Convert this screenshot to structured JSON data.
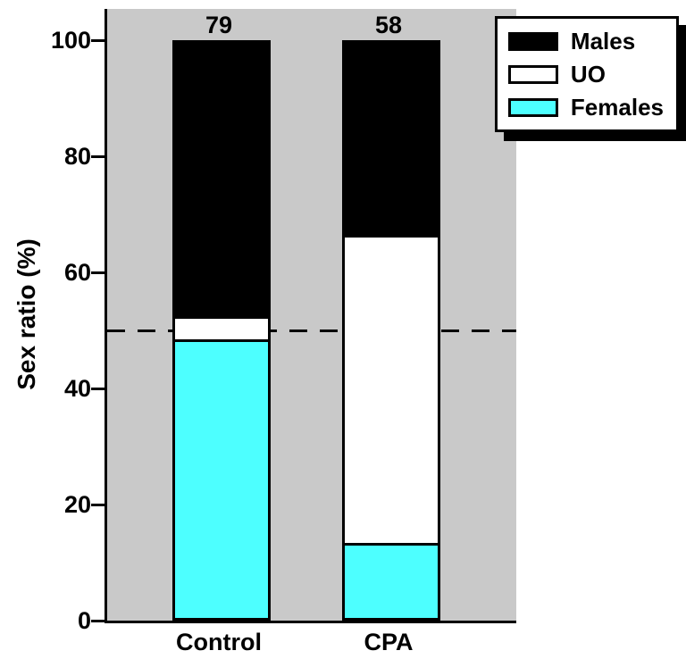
{
  "chart_data": {
    "type": "bar",
    "stacked": true,
    "title": "",
    "xlabel": "",
    "ylabel": "Sex ratio (%)",
    "ylim": [
      0,
      100
    ],
    "yticks": [
      0,
      20,
      40,
      60,
      80,
      100
    ],
    "grid": false,
    "categories": [
      "Control",
      "CPA"
    ],
    "bar_total_labels": [
      "79",
      "58"
    ],
    "series": [
      {
        "name": "Females",
        "color": "#4DFFFF",
        "values": [
          48,
          13
        ]
      },
      {
        "name": "UO",
        "color": "#FFFFFF",
        "values": [
          4,
          53
        ]
      },
      {
        "name": "Males",
        "color": "#000000",
        "values": [
          48,
          34
        ]
      }
    ],
    "legend": {
      "position": "top-right",
      "entries": [
        {
          "label": "Males",
          "color": "#000000"
        },
        {
          "label": "UO",
          "color": "#FFFFFF"
        },
        {
          "label": "Females",
          "color": "#4DFFFF"
        }
      ]
    },
    "reference_line": {
      "value": 50,
      "style": "dashed",
      "color": "#000000"
    },
    "colors": {
      "plot_background": "#C9C9C9",
      "axis": "#000000"
    }
  }
}
